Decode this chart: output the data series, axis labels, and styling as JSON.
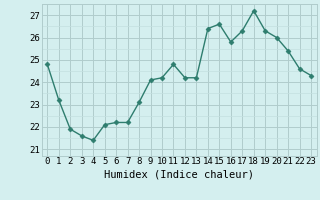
{
  "x": [
    0,
    1,
    2,
    3,
    4,
    5,
    6,
    7,
    8,
    9,
    10,
    11,
    12,
    13,
    14,
    15,
    16,
    17,
    18,
    19,
    20,
    21,
    22,
    23
  ],
  "y": [
    24.8,
    23.2,
    21.9,
    21.6,
    21.4,
    22.1,
    22.2,
    22.2,
    23.1,
    24.1,
    24.2,
    24.8,
    24.2,
    24.2,
    26.4,
    26.6,
    25.8,
    26.3,
    27.2,
    26.3,
    26.0,
    25.4,
    24.6,
    24.3
  ],
  "line_color": "#2e7d6e",
  "marker": "D",
  "marker_size": 2.5,
  "bg_color": "#d4efef",
  "grid_major_color": "#b0cccc",
  "grid_minor_color": "#c4e0e0",
  "xlabel": "Humidex (Indice chaleur)",
  "ylim": [
    20.7,
    27.5
  ],
  "yticks": [
    21,
    22,
    23,
    24,
    25,
    26,
    27
  ],
  "xticks": [
    0,
    1,
    2,
    3,
    4,
    5,
    6,
    7,
    8,
    9,
    10,
    11,
    12,
    13,
    14,
    15,
    16,
    17,
    18,
    19,
    20,
    21,
    22,
    23
  ],
  "xlabel_fontsize": 7.5,
  "tick_fontsize": 6.5,
  "line_width": 1.0
}
